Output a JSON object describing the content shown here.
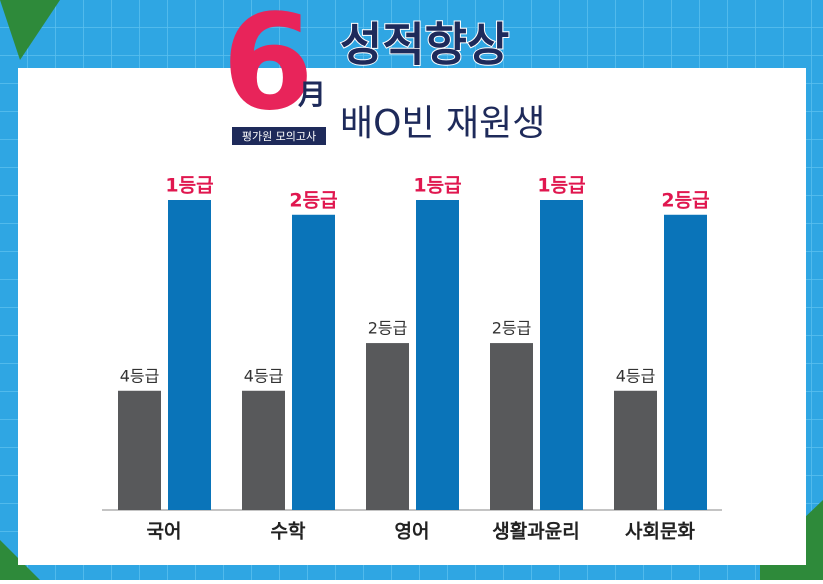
{
  "chart_data": {
    "type": "bar",
    "badge_number": "6",
    "badge_unit": "月",
    "badge_caption": "평가원 모의고사",
    "title": "성적향상",
    "subtitle": "배O빈 재원생",
    "categories": [
      "국어",
      "수학",
      "영어",
      "생활과윤리",
      "사회문화"
    ],
    "series": [
      {
        "color": "#58595b",
        "label_color": "#333333",
        "ylim": [
          9,
          -4
        ],
        "values": [
          4,
          4,
          2,
          2,
          4
        ],
        "value_labels": [
          "4등급",
          "4등급",
          "2등급",
          "2등급",
          "4등급"
        ]
      },
      {
        "color": "#0a74b9",
        "label_color": "#e0174f",
        "ylim": [
          22,
          1
        ],
        "values": [
          1,
          2,
          1,
          1,
          2
        ],
        "value_labels": [
          "1등급",
          "2등급",
          "1등급",
          "1등급",
          "2등급"
        ]
      }
    ]
  }
}
